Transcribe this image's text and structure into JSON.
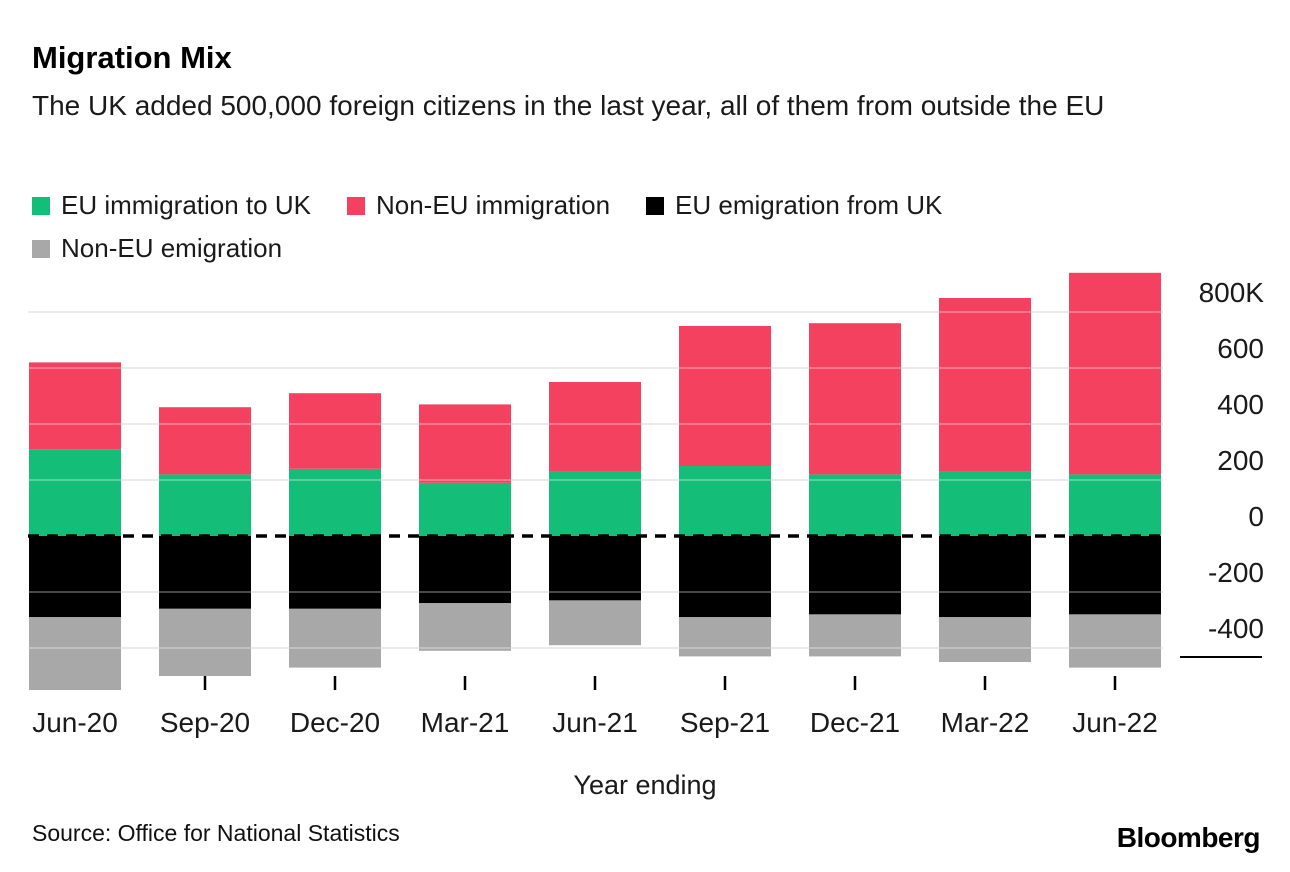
{
  "header": {
    "title": "Migration Mix",
    "subtitle": "The UK added 500,000 foreign citizens in the last year, all of them from outside the EU"
  },
  "legend": {
    "items": [
      {
        "label": "EU immigration to UK",
        "color": "#14bd78"
      },
      {
        "label": "Non-EU immigration",
        "color": "#f4415f"
      },
      {
        "label": "EU emigration from UK",
        "color": "#000000"
      },
      {
        "label": "Non-EU emigration",
        "color": "#a8a8a8"
      }
    ]
  },
  "chart_data": {
    "type": "bar",
    "stacked": true,
    "title": "Migration Mix",
    "xlabel": "Year ending",
    "ylabel": "",
    "categories": [
      "Jun-20",
      "Sep-20",
      "Dec-20",
      "Mar-21",
      "Jun-21",
      "Sep-21",
      "Dec-21",
      "Mar-22",
      "Jun-22"
    ],
    "series": [
      {
        "name": "EU immigration to UK",
        "color": "#14bd78",
        "values": [
          310,
          220,
          240,
          190,
          230,
          250,
          220,
          230,
          220
        ]
      },
      {
        "name": "Non-EU immigration",
        "color": "#f4415f",
        "values": [
          310,
          240,
          270,
          280,
          320,
          500,
          540,
          620,
          720
        ]
      },
      {
        "name": "EU emigration from UK",
        "color": "#000000",
        "values": [
          -290,
          -260,
          -260,
          -240,
          -230,
          -290,
          -280,
          -290,
          -280
        ]
      },
      {
        "name": "Non-EU emigration",
        "color": "#a8a8a8",
        "values": [
          -260,
          -240,
          -210,
          -170,
          -160,
          -140,
          -150,
          -160,
          -190
        ]
      }
    ],
    "y_ticks": [
      {
        "value": 800,
        "label": "800K"
      },
      {
        "value": 600,
        "label": "600"
      },
      {
        "value": 400,
        "label": "400"
      },
      {
        "value": 200,
        "label": "200"
      },
      {
        "value": 0,
        "label": "0"
      },
      {
        "value": -200,
        "label": "-200"
      },
      {
        "value": -400,
        "label": "-400"
      }
    ],
    "ylim": [
      -560,
      950
    ],
    "grid": true,
    "grid_color": "#d9d9d9",
    "zero_line_style": "dashed-black",
    "legend_position": "top"
  },
  "footer": {
    "source": "Source: Office for National Statistics",
    "brand": "Bloomberg"
  }
}
